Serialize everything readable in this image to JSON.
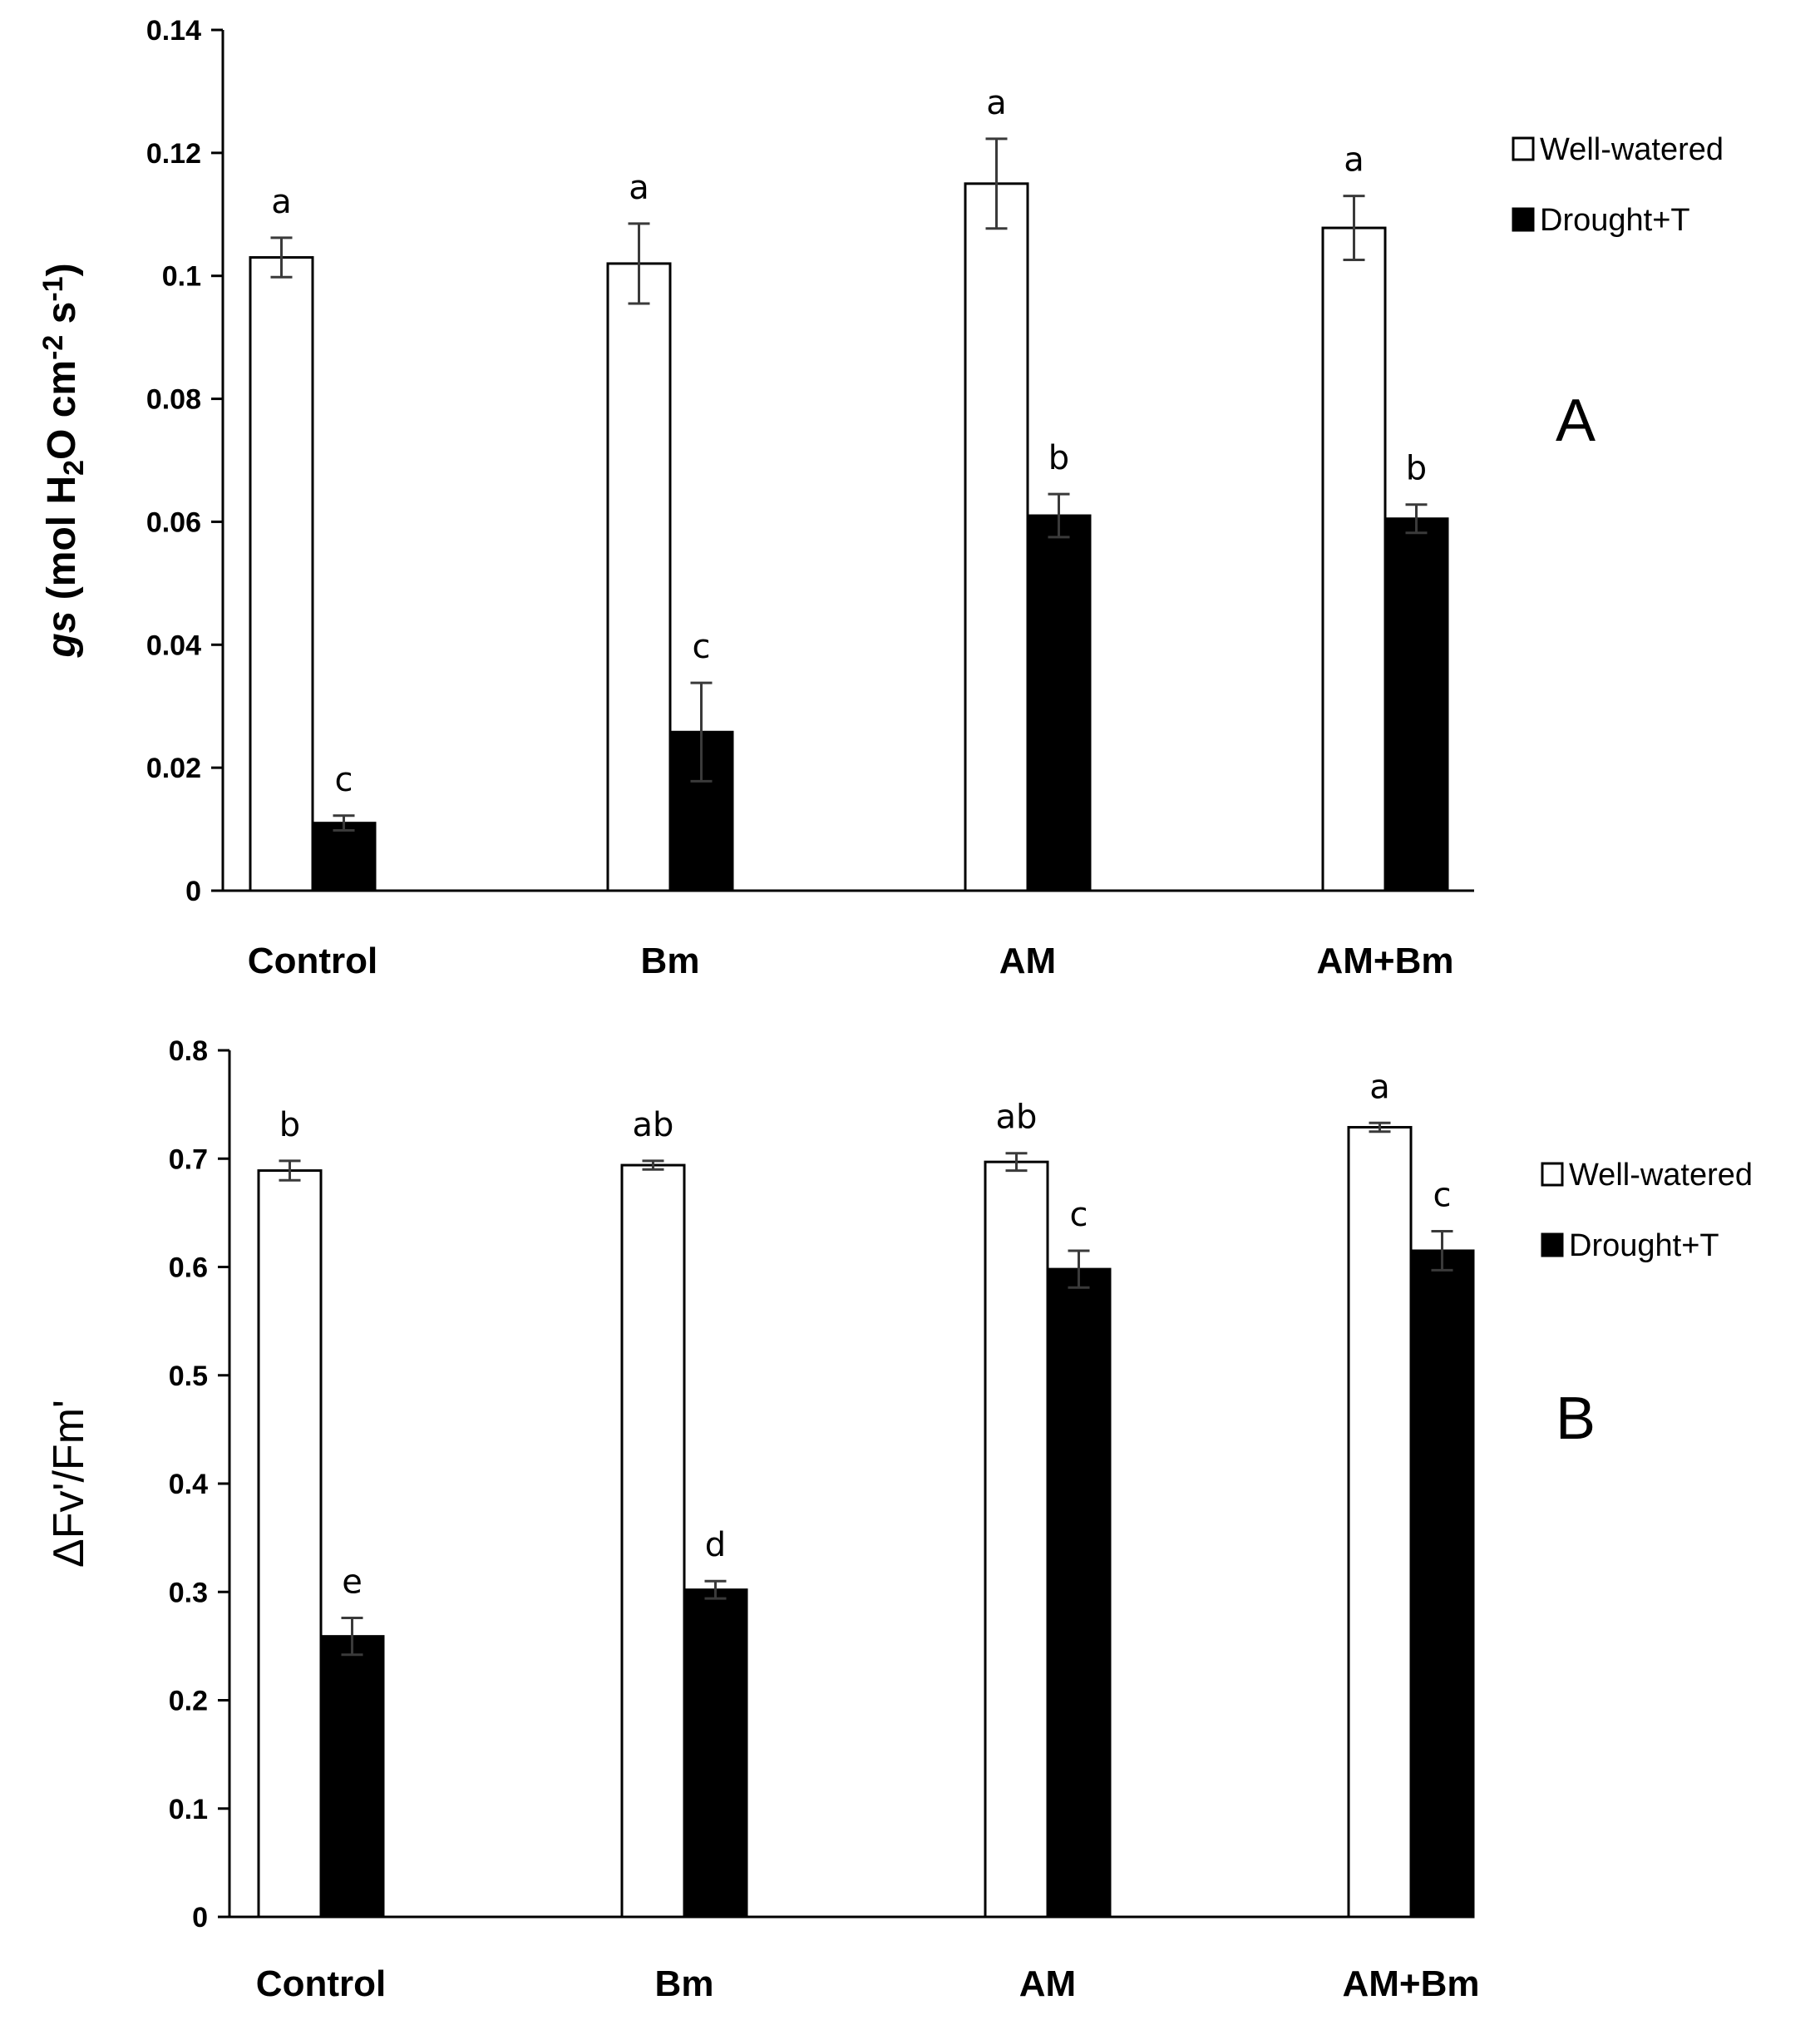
{
  "chart_data": [
    {
      "type": "bar",
      "panel": "A",
      "categories": [
        "Control",
        "Bm",
        "AM",
        "AM+Bm"
      ],
      "ylim": [
        0,
        0.14
      ],
      "yticks": [
        "0",
        "0.02",
        "0.04",
        "0.06",
        "0.08",
        "0.1",
        "0.12",
        "0.14"
      ],
      "ylabel_parts": [
        "gs",
        " (mol H",
        "2",
        "O cm",
        "-2",
        " s",
        "-1",
        ")"
      ],
      "series": [
        {
          "name": "Well-watered",
          "color": "#ffffff",
          "values": [
            0.103,
            0.102,
            0.115,
            0.1078
          ],
          "errors": [
            0.0032,
            0.0065,
            0.0073,
            0.0052
          ],
          "letters": [
            "a",
            "a",
            "a",
            "a"
          ]
        },
        {
          "name": "Drought+T",
          "color": "#000000",
          "values": [
            0.011,
            0.0258,
            0.061,
            0.0605
          ],
          "errors": [
            0.0012,
            0.008,
            0.0035,
            0.0023
          ],
          "letters": [
            "c",
            "c",
            "b",
            "b"
          ]
        }
      ]
    },
    {
      "type": "bar",
      "panel": "B",
      "categories": [
        "Control",
        "Bm",
        "AM",
        "AM+Bm"
      ],
      "ylim": [
        0,
        0.8
      ],
      "yticks": [
        "0",
        "0.1",
        "0.2",
        "0.3",
        "0.4",
        "0.5",
        "0.6",
        "0.7",
        "0.8"
      ],
      "ylabel_parts": [
        "ΔFv'/Fm'"
      ],
      "series": [
        {
          "name": "Well-watered",
          "color": "#ffffff",
          "values": [
            0.689,
            0.694,
            0.697,
            0.729
          ],
          "errors": [
            0.009,
            0.004,
            0.008,
            0.004
          ],
          "letters": [
            "b",
            "ab",
            "ab",
            "a"
          ]
        },
        {
          "name": "Drought+T",
          "color": "#000000",
          "values": [
            0.259,
            0.302,
            0.598,
            0.615
          ],
          "errors": [
            0.017,
            0.008,
            0.017,
            0.018
          ],
          "letters": [
            "e",
            "d",
            "c",
            "c"
          ]
        }
      ]
    }
  ]
}
